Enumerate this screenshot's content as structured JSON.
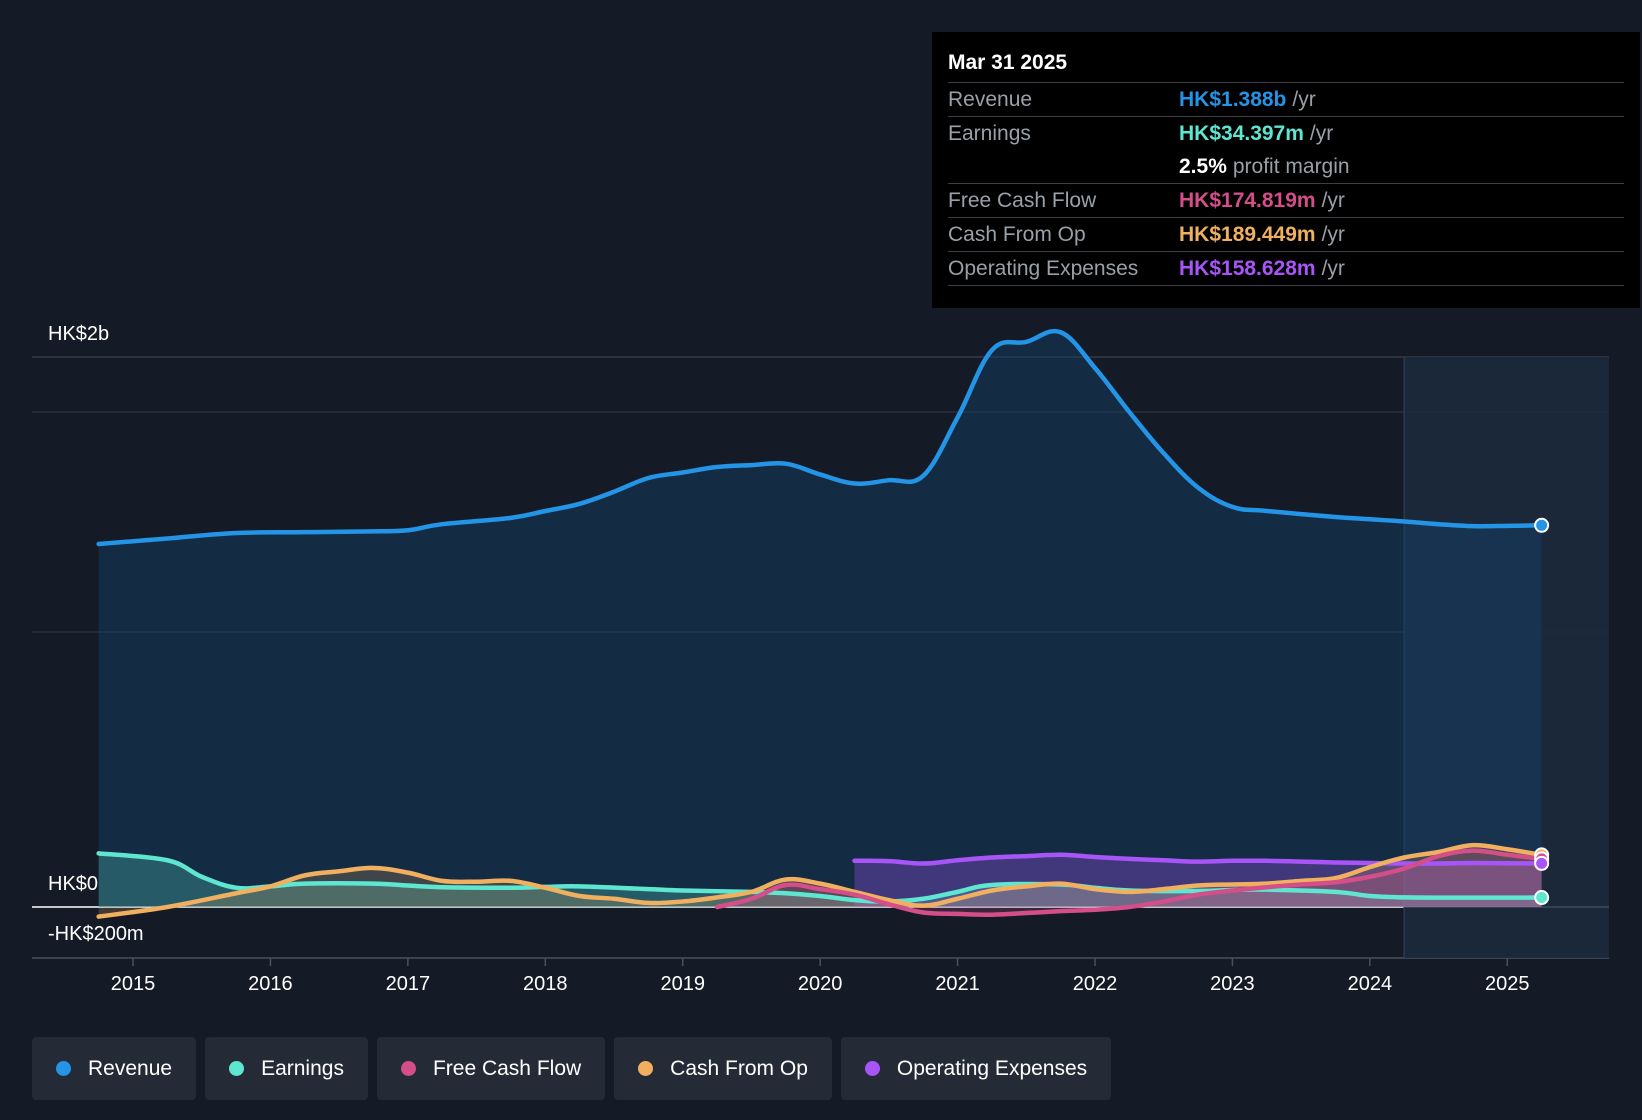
{
  "tooltip": {
    "date": "Mar 31 2025",
    "rows": [
      {
        "label": "Revenue",
        "value": "HK$1.388b",
        "unit": "/yr",
        "color": "#2394e6"
      },
      {
        "label": "Earnings",
        "value": "HK$34.397m",
        "unit": "/yr",
        "color": "#5ee6d0"
      },
      {
        "label": "Free Cash Flow",
        "value": "HK$174.819m",
        "unit": "/yr",
        "color": "#d44e8a"
      },
      {
        "label": "Cash From Op",
        "value": "HK$189.449m",
        "unit": "/yr",
        "color": "#f0b060"
      },
      {
        "label": "Operating Expenses",
        "value": "HK$158.628m",
        "unit": "/yr",
        "color": "#a855f7"
      }
    ],
    "profit_margin": {
      "value": "2.5%",
      "label": "profit margin"
    }
  },
  "legend": [
    {
      "label": "Revenue",
      "color": "#2394e6"
    },
    {
      "label": "Earnings",
      "color": "#5ee6d0"
    },
    {
      "label": "Free Cash Flow",
      "color": "#d44e8a"
    },
    {
      "label": "Cash From Op",
      "color": "#f0b060"
    },
    {
      "label": "Operating Expenses",
      "color": "#a855f7"
    }
  ],
  "chart_data": {
    "type": "area",
    "y_axis_labels": [
      "HK$2b",
      "HK$0",
      "-HK$200m"
    ],
    "ylim": [
      -200,
      2000
    ],
    "y_unit": "HK$m",
    "xlim": [
      2014.5,
      2025.25
    ],
    "x_ticks": [
      2015,
      2016,
      2017,
      2018,
      2019,
      2020,
      2021,
      2022,
      2023,
      2024,
      2025
    ],
    "forecast_start": 2024.25,
    "grid": true,
    "series": [
      {
        "name": "Revenue",
        "color": "#2394e6",
        "fill": true,
        "points": [
          [
            2014.75,
            1320
          ],
          [
            2015.25,
            1340
          ],
          [
            2015.75,
            1360
          ],
          [
            2016.25,
            1363
          ],
          [
            2016.75,
            1366
          ],
          [
            2017.0,
            1370
          ],
          [
            2017.25,
            1392
          ],
          [
            2017.75,
            1415
          ],
          [
            2018.0,
            1440
          ],
          [
            2018.25,
            1466
          ],
          [
            2018.5,
            1510
          ],
          [
            2018.75,
            1560
          ],
          [
            2019.0,
            1580
          ],
          [
            2019.25,
            1600
          ],
          [
            2019.5,
            1607
          ],
          [
            2019.75,
            1612
          ],
          [
            2020.0,
            1573
          ],
          [
            2020.25,
            1540
          ],
          [
            2020.5,
            1552
          ],
          [
            2020.75,
            1568
          ],
          [
            2021.0,
            1780
          ],
          [
            2021.25,
            2025
          ],
          [
            2021.5,
            2055
          ],
          [
            2021.75,
            2090
          ],
          [
            2022.0,
            1960
          ],
          [
            2022.25,
            1800
          ],
          [
            2022.5,
            1650
          ],
          [
            2022.75,
            1525
          ],
          [
            2023.0,
            1455
          ],
          [
            2023.25,
            1440
          ],
          [
            2023.75,
            1418
          ],
          [
            2024.0,
            1410
          ],
          [
            2024.25,
            1402
          ],
          [
            2024.5,
            1392
          ],
          [
            2024.75,
            1385
          ],
          [
            2025.0,
            1386
          ],
          [
            2025.25,
            1388
          ]
        ]
      },
      {
        "name": "Earnings",
        "color": "#5ee6d0",
        "fill": true,
        "points": [
          [
            2014.75,
            195
          ],
          [
            2015.25,
            170
          ],
          [
            2015.5,
            110
          ],
          [
            2015.75,
            70
          ],
          [
            2016.0,
            75
          ],
          [
            2016.25,
            85
          ],
          [
            2016.75,
            85
          ],
          [
            2017.0,
            78
          ],
          [
            2017.25,
            72
          ],
          [
            2017.75,
            70
          ],
          [
            2018.0,
            73
          ],
          [
            2018.25,
            75
          ],
          [
            2018.75,
            65
          ],
          [
            2019.0,
            60
          ],
          [
            2019.5,
            55
          ],
          [
            2019.75,
            50
          ],
          [
            2020.0,
            40
          ],
          [
            2020.25,
            25
          ],
          [
            2020.5,
            20
          ],
          [
            2020.75,
            30
          ],
          [
            2021.0,
            55
          ],
          [
            2021.25,
            80
          ],
          [
            2021.75,
            82
          ],
          [
            2022.0,
            70
          ],
          [
            2022.25,
            60
          ],
          [
            2022.75,
            58
          ],
          [
            2023.0,
            62
          ],
          [
            2023.25,
            63
          ],
          [
            2023.75,
            55
          ],
          [
            2024.0,
            40
          ],
          [
            2024.25,
            35
          ],
          [
            2024.75,
            34
          ],
          [
            2025.25,
            34.4
          ]
        ]
      },
      {
        "name": "Free Cash Flow",
        "color": "#d44e8a",
        "fill": true,
        "points": [
          [
            2019.25,
            0
          ],
          [
            2019.5,
            30
          ],
          [
            2019.75,
            80
          ],
          [
            2020.0,
            65
          ],
          [
            2020.25,
            45
          ],
          [
            2020.5,
            10
          ],
          [
            2020.75,
            -20
          ],
          [
            2021.0,
            -25
          ],
          [
            2021.25,
            -28
          ],
          [
            2021.5,
            -22
          ],
          [
            2021.75,
            -15
          ],
          [
            2022.0,
            -10
          ],
          [
            2022.25,
            0
          ],
          [
            2022.5,
            20
          ],
          [
            2022.75,
            45
          ],
          [
            2023.0,
            60
          ],
          [
            2023.25,
            72
          ],
          [
            2023.5,
            82
          ],
          [
            2023.75,
            90
          ],
          [
            2024.0,
            110
          ],
          [
            2024.25,
            140
          ],
          [
            2024.5,
            185
          ],
          [
            2024.75,
            205
          ],
          [
            2025.0,
            190
          ],
          [
            2025.25,
            174.8
          ]
        ]
      },
      {
        "name": "Cash From Op",
        "color": "#f0b060",
        "fill": true,
        "points": [
          [
            2014.75,
            -35
          ],
          [
            2015.25,
            0
          ],
          [
            2015.75,
            50
          ],
          [
            2016.0,
            75
          ],
          [
            2016.25,
            115
          ],
          [
            2016.5,
            130
          ],
          [
            2016.75,
            142
          ],
          [
            2017.0,
            125
          ],
          [
            2017.25,
            95
          ],
          [
            2017.5,
            92
          ],
          [
            2017.75,
            95
          ],
          [
            2018.0,
            70
          ],
          [
            2018.25,
            40
          ],
          [
            2018.5,
            30
          ],
          [
            2018.75,
            15
          ],
          [
            2019.0,
            20
          ],
          [
            2019.25,
            35
          ],
          [
            2019.5,
            55
          ],
          [
            2019.75,
            100
          ],
          [
            2020.0,
            85
          ],
          [
            2020.25,
            55
          ],
          [
            2020.5,
            25
          ],
          [
            2020.75,
            5
          ],
          [
            2021.0,
            30
          ],
          [
            2021.25,
            60
          ],
          [
            2021.5,
            75
          ],
          [
            2021.75,
            85
          ],
          [
            2022.0,
            65
          ],
          [
            2022.25,
            55
          ],
          [
            2022.5,
            65
          ],
          [
            2022.75,
            78
          ],
          [
            2023.0,
            82
          ],
          [
            2023.25,
            85
          ],
          [
            2023.5,
            95
          ],
          [
            2023.75,
            105
          ],
          [
            2024.0,
            145
          ],
          [
            2024.25,
            180
          ],
          [
            2024.5,
            200
          ],
          [
            2024.75,
            225
          ],
          [
            2025.0,
            210
          ],
          [
            2025.25,
            189.4
          ]
        ]
      },
      {
        "name": "Operating Expenses",
        "color": "#a855f7",
        "fill": true,
        "points": [
          [
            2020.25,
            168
          ],
          [
            2020.5,
            167
          ],
          [
            2020.75,
            158
          ],
          [
            2021.0,
            170
          ],
          [
            2021.25,
            180
          ],
          [
            2021.5,
            185
          ],
          [
            2021.75,
            190
          ],
          [
            2022.0,
            182
          ],
          [
            2022.25,
            175
          ],
          [
            2022.5,
            170
          ],
          [
            2022.75,
            165
          ],
          [
            2023.0,
            168
          ],
          [
            2023.25,
            168
          ],
          [
            2023.5,
            165
          ],
          [
            2023.75,
            162
          ],
          [
            2024.0,
            160
          ],
          [
            2024.25,
            158
          ],
          [
            2024.5,
            158
          ],
          [
            2024.75,
            160
          ],
          [
            2025.0,
            159
          ],
          [
            2025.25,
            158.6
          ]
        ]
      }
    ]
  }
}
